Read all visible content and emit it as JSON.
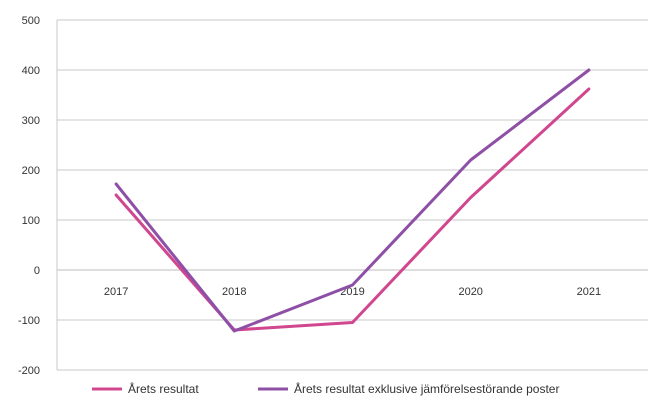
{
  "chart_data": {
    "type": "line",
    "categories": [
      "2017",
      "2018",
      "2019",
      "2020",
      "2021"
    ],
    "ylim": [
      -200,
      500
    ],
    "yticks": [
      500,
      400,
      300,
      200,
      100,
      0,
      -100,
      -200
    ],
    "grid": true,
    "legend_position": "bottom",
    "series": [
      {
        "name": "Årets resultat",
        "color": "#d0478f",
        "values": [
          150,
          -120,
          -105,
          145,
          362
        ]
      },
      {
        "name": "Årets resultat exklusive jämförelsestörande poster",
        "color": "#8e4fa6",
        "values": [
          172,
          -122,
          -30,
          220,
          400
        ]
      }
    ]
  }
}
